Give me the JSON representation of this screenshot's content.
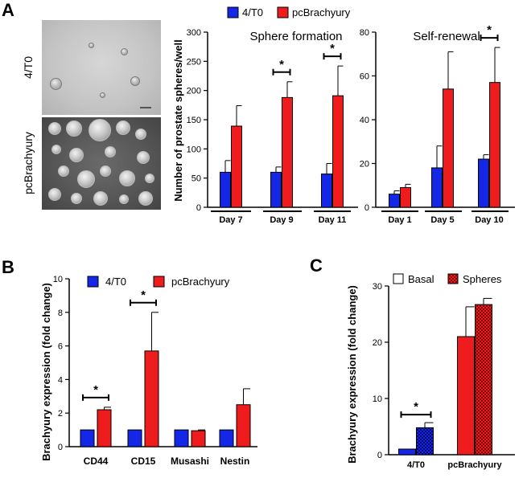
{
  "panels": {
    "a": "A",
    "b": "B",
    "c": "C"
  },
  "colors": {
    "blue": "#1426e6",
    "red": "#ee1c1c",
    "basal_bar": "#ee1c1c",
    "spheres_bar": "#ee1c1c"
  },
  "panelA": {
    "image_labels": [
      "4/T0",
      "pcBrachyury"
    ],
    "legend": [
      "4/T0",
      "pcBrachyury"
    ],
    "ylabel": "Number of prostate spheres/well"
  },
  "chart_data": [
    {
      "id": "sphere",
      "type": "bar",
      "title": "Sphere formation",
      "categories": [
        "Day 7",
        "Day 9",
        "Day 11"
      ],
      "series": [
        {
          "name": "4/T0",
          "values": [
            60,
            60,
            57
          ],
          "errors": [
            20,
            9,
            18
          ]
        },
        {
          "name": "pcBrachyury",
          "values": [
            139,
            188,
            191
          ],
          "errors": [
            35,
            27,
            51
          ]
        }
      ],
      "ylim": [
        0,
        300
      ],
      "yticks": [
        "0",
        "50",
        "100",
        "150",
        "200",
        "250",
        "300"
      ],
      "significance": [
        "Day 9",
        "Day 11"
      ],
      "star": "*"
    },
    {
      "id": "renew",
      "type": "bar",
      "title": "Self-renewal",
      "categories": [
        "Day 1",
        "Day 5",
        "Day 10"
      ],
      "series": [
        {
          "name": "4/T0",
          "values": [
            6,
            18,
            22
          ],
          "errors": [
            1.5,
            10,
            2
          ]
        },
        {
          "name": "pcBrachyury",
          "values": [
            9,
            54,
            57
          ],
          "errors": [
            1.5,
            17,
            16
          ]
        }
      ],
      "ylim": [
        0,
        80
      ],
      "yticks": [
        "0",
        "20",
        "40",
        "60",
        "80"
      ],
      "significance": [
        "Day 10"
      ],
      "star": "*"
    },
    {
      "id": "markers",
      "type": "bar",
      "title": "",
      "ylabel": "Brachyury expression (fold change)",
      "legend": [
        "4/T0",
        "pcBrachyury"
      ],
      "categories": [
        "CD44",
        "CD15",
        "Musashi",
        "Nestin"
      ],
      "series": [
        {
          "name": "4/T0",
          "values": [
            1,
            1,
            1,
            1
          ],
          "errors": [
            0,
            0,
            0,
            0
          ]
        },
        {
          "name": "pcBrachyury",
          "values": [
            2.2,
            5.7,
            0.95,
            2.5
          ],
          "errors": [
            0.15,
            2.3,
            0.05,
            0.95
          ]
        }
      ],
      "ylim": [
        0,
        10
      ],
      "yticks": [
        "0",
        "2",
        "4",
        "6",
        "8",
        "10"
      ],
      "significance": [
        "CD44",
        "CD15"
      ],
      "star": "*"
    },
    {
      "id": "spheres",
      "type": "bar",
      "title": "",
      "ylabel": "Brachyury expression (fold change)",
      "legend": [
        "Basal",
        "Spheres"
      ],
      "categories": [
        "4/T0",
        "pcBrachyury"
      ],
      "series": [
        {
          "name": "Basal",
          "values": [
            1,
            21
          ],
          "errors": [
            0,
            5.3
          ]
        },
        {
          "name": "Spheres",
          "values": [
            4.8,
            26.7
          ],
          "errors": [
            0.9,
            1.1
          ]
        }
      ],
      "ylim": [
        0,
        30
      ],
      "yticks": [
        "0",
        "10",
        "20",
        "30"
      ],
      "significance": [
        "4/T0"
      ],
      "star": "*"
    }
  ]
}
